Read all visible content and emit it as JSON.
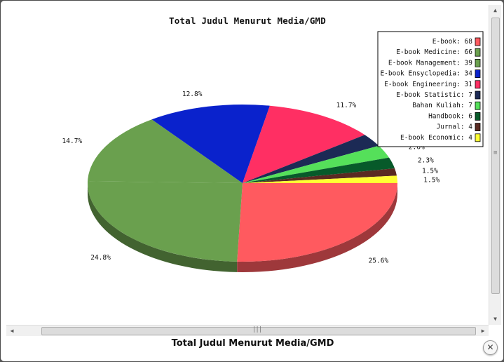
{
  "caption": "Total Judul Menurut Media/GMD",
  "close_icon": "close-icon",
  "chart_data": {
    "type": "pie",
    "title": "Total Judul Menurut Media/GMD",
    "legend_position": "top-right",
    "series": [
      {
        "name": "E-book",
        "value": 68,
        "color": "#ff5a5f",
        "percent_label": "25.6%"
      },
      {
        "name": "E-book Medicine",
        "value": 66,
        "color": "#6aa04e",
        "percent_label": "24.8%"
      },
      {
        "name": "E-book Management",
        "value": 39,
        "color": "#6aa04e",
        "percent_label": "14.7%"
      },
      {
        "name": "E-book Ensyclopedia",
        "value": 34,
        "color": "#0a22cc",
        "percent_label": "12.8%"
      },
      {
        "name": "E-book Engineering",
        "value": 31,
        "color": "#ff2f63",
        "percent_label": "11.7%"
      },
      {
        "name": "E-book Statistic",
        "value": 7,
        "color": "#1c2a55",
        "percent_label": "2.6%"
      },
      {
        "name": "Bahan Kuliah",
        "value": 7,
        "color": "#55e05a",
        "percent_label": "2.6%"
      },
      {
        "name": "Handbook",
        "value": 6,
        "color": "#075a2a",
        "percent_label": "2.3%"
      },
      {
        "name": "Jurnal",
        "value": 4,
        "color": "#5a2a22",
        "percent_label": "1.5%"
      },
      {
        "name": "E-book Economic",
        "value": 4,
        "color": "#ffff33",
        "percent_label": "1.5%"
      }
    ]
  }
}
